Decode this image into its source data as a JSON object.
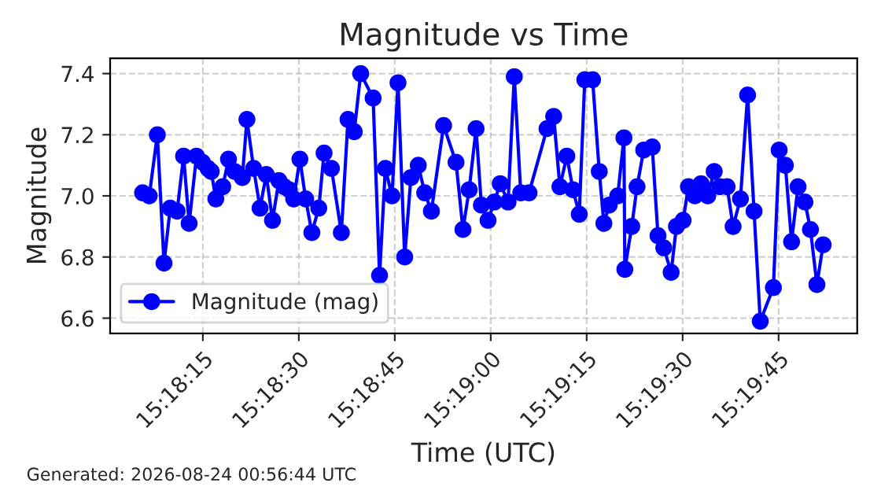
{
  "chart_data": {
    "type": "line",
    "title": "Magnitude vs Time",
    "xlabel": "Time (UTC)",
    "ylabel": "Magnitude",
    "annotations": [
      "Generated: 2026-08-24 00:56:44 UTC"
    ],
    "x": [
      15.30155,
      15.30184,
      15.30219,
      15.30248,
      15.30275,
      15.30305,
      15.30333,
      15.30357,
      15.30389,
      15.30415,
      15.30439,
      15.30453,
      15.30473,
      15.30503,
      15.30528,
      15.30555,
      15.30588,
      15.30608,
      15.30637,
      15.30665,
      15.30692,
      15.30719,
      15.30747,
      15.3077,
      15.30792,
      15.30811,
      15.30838,
      15.30863,
      15.3089,
      15.3092,
      15.30943,
      15.30975,
      15.31018,
      15.31047,
      15.31074,
      15.31102,
      15.31156,
      15.31184,
      15.31209,
      15.31238,
      15.31264,
      15.31293,
      15.3132,
      15.31352,
      15.3138,
      15.31409,
      15.31462,
      15.31516,
      15.31546,
      15.31573,
      15.31603,
      15.31626,
      15.31655,
      15.31682,
      15.31708,
      15.31742,
      15.31769,
      15.31797,
      15.31833,
      15.31911,
      15.3194,
      15.31967,
      15.31997,
      15.32024,
      15.32051,
      15.32075,
      15.32109,
      15.32138,
      15.32158,
      15.32181,
      15.32218,
      15.32245,
      15.32249,
      15.32279,
      15.32302,
      15.32331,
      15.32368,
      15.32393,
      15.32418,
      15.3245,
      15.32473,
      15.32502,
      15.32525,
      15.32553,
      15.3258,
      15.32609,
      15.32637,
      15.32662,
      15.32693,
      15.32719,
      15.32751,
      15.32782,
      15.3281,
      15.32837,
      15.32894,
      15.32919,
      15.32946,
      15.32973,
      15.33001,
      15.33031,
      15.33055,
      15.33083,
      15.3311
    ],
    "series": [
      {
        "name": "Magnitude (mag)",
        "color": "#0000ff",
        "values": [
          7.01,
          7.0,
          7.2,
          6.78,
          6.96,
          6.95,
          7.13,
          6.91,
          7.13,
          7.11,
          7.09,
          7.08,
          6.99,
          7.03,
          7.12,
          7.08,
          7.06,
          7.25,
          7.09,
          6.96,
          7.07,
          6.92,
          7.05,
          7.03,
          7.02,
          6.99,
          7.12,
          6.99,
          6.88,
          6.96,
          7.14,
          7.09,
          6.88,
          7.25,
          7.21,
          7.4,
          7.32,
          6.74,
          7.09,
          7.0,
          7.37,
          6.8,
          7.06,
          7.1,
          7.01,
          6.95,
          7.23,
          7.11,
          6.89,
          7.02,
          7.22,
          6.97,
          6.92,
          6.98,
          7.04,
          6.98,
          7.39,
          7.01,
          7.01,
          7.22,
          7.26,
          7.03,
          7.13,
          7.02,
          6.94,
          7.38,
          7.38,
          7.08,
          6.91,
          6.97,
          7.0,
          7.19,
          6.76,
          6.9,
          7.03,
          7.15,
          7.16,
          6.87,
          6.83,
          6.75,
          6.9,
          6.92,
          7.03,
          7.0,
          7.04,
          7.0,
          7.08,
          7.03,
          7.03,
          6.9,
          6.99,
          7.33,
          6.95,
          6.59,
          6.7,
          7.15,
          7.1,
          6.85,
          7.03,
          6.98,
          6.89,
          6.71,
          6.84
        ]
      }
    ],
    "xlim": [
      15.30014,
      15.33258
    ],
    "ylim": [
      6.55,
      7.45
    ],
    "xticks": [
      {
        "value": 15.304167,
        "label": "15:18:15"
      },
      {
        "value": 15.308333,
        "label": "15:18:30"
      },
      {
        "value": 15.3125,
        "label": "15:18:45"
      },
      {
        "value": 15.316667,
        "label": "15:19:00"
      },
      {
        "value": 15.320833,
        "label": "15:19:15"
      },
      {
        "value": 15.325,
        "label": "15:19:30"
      },
      {
        "value": 15.329167,
        "label": "15:19:45"
      }
    ],
    "yticks": [
      {
        "value": 6.6,
        "label": "6.6"
      },
      {
        "value": 6.8,
        "label": "6.8"
      },
      {
        "value": 7.0,
        "label": "7.0"
      },
      {
        "value": 7.2,
        "label": "7.2"
      },
      {
        "value": 7.4,
        "label": "7.4"
      }
    ],
    "grid": true,
    "legend": "lower left",
    "marker": "circle",
    "line_style": "solid"
  }
}
